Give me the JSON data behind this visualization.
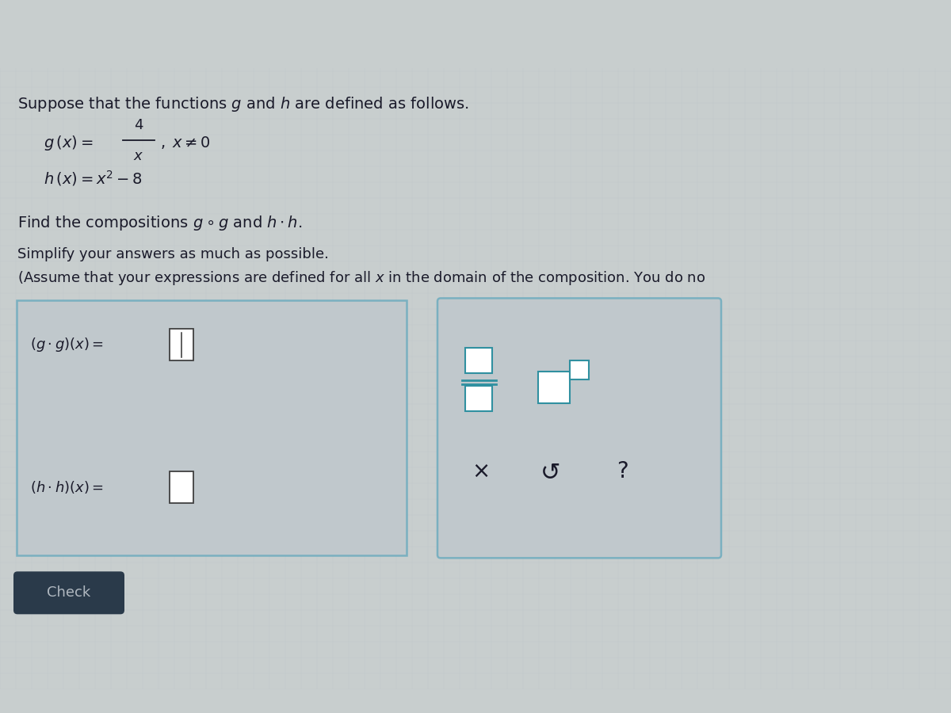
{
  "bg_color_top_dark": "#1c3a30",
  "bg_color_header": "#8aacb8",
  "bg_color_main": "#c8cece",
  "bg_color_bottom": "#2a2a2a",
  "text_color": "#1a1a2a",
  "box_border_color": "#7ab0c0",
  "answer_box_bg": "#c0c8cc",
  "tool_box_bg": "#c0c8cc",
  "input_box_color": "#ffffff",
  "check_button_color": "#2a3a4a",
  "check_text_color": "#b0b8c0",
  "teal_color": "#3090a0",
  "grid_color": "#b8c4c8",
  "title": "Suppose that the functions $g$ and $h$ are defined as follows.",
  "g_prefix": "$g\\,(x) = $",
  "g_neq": "$,\\; x \\neq 0$",
  "h_eq": "$h\\,(x) = x^{2} - 8$",
  "compositions": "Find the compositions $g \\circ g$ and $h \\cdot h$.",
  "simplify": "Simplify your answers as much as possible.",
  "assume": "(Assume that your expressions are defined for all $x$ in the domain of the composition. You do no",
  "gg_label": "$(g \\cdot g)(x) = $",
  "hh_label": "$(h \\cdot h)(x) = $",
  "check_text": "Check"
}
